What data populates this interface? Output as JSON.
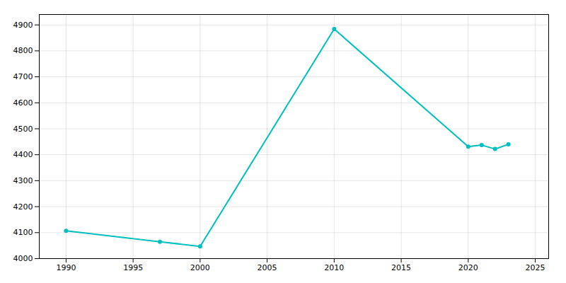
{
  "chart_data": {
    "type": "line",
    "x": [
      1990,
      1997,
      2000,
      2010,
      2020,
      2021,
      2022,
      2023
    ],
    "values": [
      4107,
      4065,
      4047,
      4884,
      4431,
      4437,
      4422,
      4440
    ],
    "color": "#00BFBF",
    "marker": "circle",
    "xlim": [
      1988,
      2026
    ],
    "ylim": [
      4000,
      4940
    ],
    "xticks": [
      1990,
      1995,
      2000,
      2005,
      2010,
      2015,
      2020,
      2025
    ],
    "yticks": [
      4000,
      4100,
      4200,
      4300,
      4400,
      4500,
      4600,
      4700,
      4800,
      4900
    ],
    "grid": true
  }
}
